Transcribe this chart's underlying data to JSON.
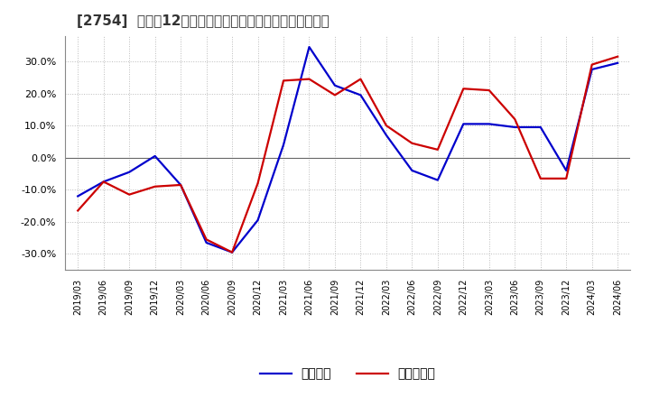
{
  "title": "[2754]  利益の12か月移動合計の対前年同期増減率の推移",
  "ylim": [
    -0.35,
    0.38
  ],
  "yticks": [
    -0.3,
    -0.2,
    -0.1,
    0.0,
    0.1,
    0.2,
    0.3
  ],
  "ytick_labels": [
    "-30.0%",
    "-20.0%",
    "-10.0%",
    "0.0%",
    "10.0%",
    "20.0%",
    "30.0%"
  ],
  "grid_color": "#bbbbbb",
  "background_color": "#ffffff",
  "plot_bg_color": "#ffffff",
  "dates": [
    "2019/03",
    "2019/06",
    "2019/09",
    "2019/12",
    "2020/03",
    "2020/06",
    "2020/09",
    "2020/12",
    "2021/03",
    "2021/06",
    "2021/09",
    "2021/12",
    "2022/03",
    "2022/06",
    "2022/09",
    "2022/12",
    "2023/03",
    "2023/06",
    "2023/09",
    "2023/12",
    "2024/03",
    "2024/06"
  ],
  "keijo_rieki": [
    -0.12,
    -0.075,
    -0.045,
    0.005,
    -0.085,
    -0.265,
    -0.295,
    -0.195,
    0.04,
    0.345,
    0.225,
    0.195,
    0.07,
    -0.04,
    -0.07,
    0.105,
    0.105,
    0.095,
    0.095,
    -0.04,
    0.275,
    0.295
  ],
  "touki_jun_rieki": [
    -0.165,
    -0.075,
    -0.115,
    -0.09,
    -0.085,
    -0.255,
    -0.295,
    -0.08,
    0.24,
    0.245,
    0.195,
    0.245,
    0.1,
    0.045,
    0.025,
    0.215,
    0.21,
    0.12,
    -0.065,
    -0.065,
    0.29,
    0.315
  ],
  "keijo_color": "#0000cc",
  "touki_color": "#cc0000",
  "line_width": 1.6,
  "title_fontsize": 11,
  "tick_fontsize": 8,
  "legend_fontsize": 10
}
